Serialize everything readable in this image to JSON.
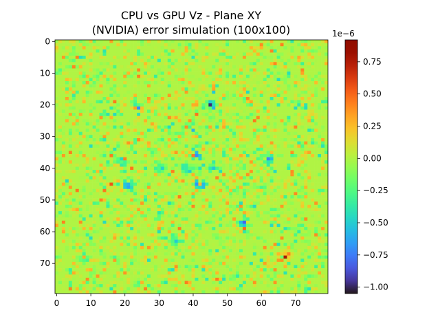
{
  "chart_data": {
    "type": "heatmap",
    "title_lines": [
      "CPU vs GPU Vz - Plane XY",
      "(NVIDIA) error simulation (100x100)"
    ],
    "grid": {
      "nx": 80,
      "ny": 80
    },
    "x_ticks": [
      0,
      10,
      20,
      30,
      40,
      50,
      60,
      70
    ],
    "y_ticks": [
      0,
      10,
      20,
      30,
      40,
      50,
      60,
      70
    ],
    "xlim": [
      -0.5,
      79.5
    ],
    "ylim": [
      79.5,
      -0.5
    ],
    "colormap": "turbo",
    "colorbar": {
      "min": -1.05,
      "max": 0.92,
      "ticks": [
        0.75,
        0.5,
        0.25,
        0.0,
        -0.25,
        -0.5,
        -0.75,
        -1.0
      ],
      "tick_labels": [
        "0.75",
        "0.50",
        "0.25",
        "0.00",
        "−0.25",
        "−0.50",
        "−0.75",
        "−1.00"
      ],
      "exponent_label": "1e−6"
    },
    "colors": {
      "background_value_color": "#a4fc3c",
      "extreme_negative": "#7a0403",
      "extreme_positive": "#30123b"
    }
  }
}
